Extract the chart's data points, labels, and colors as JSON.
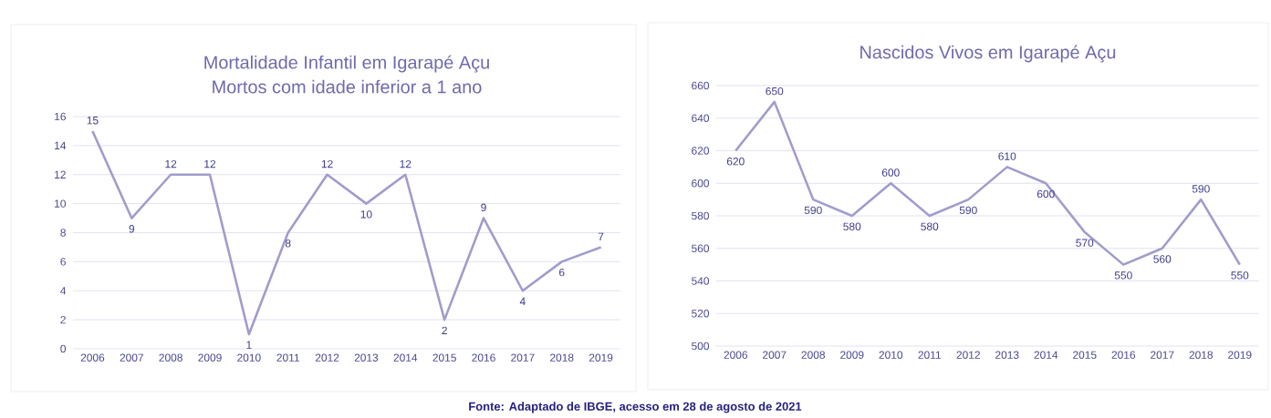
{
  "chart_data": [
    {
      "type": "line",
      "title": "Mortalidade Infantil em Igarapé Açu",
      "subtitle": "Mortos com idade inferior a 1 ano",
      "categories": [
        "2006",
        "2007",
        "2008",
        "2009",
        "2010",
        "2011",
        "2012",
        "2013",
        "2014",
        "2015",
        "2016",
        "2017",
        "2018",
        "2019"
      ],
      "values": [
        15,
        9,
        12,
        12,
        1,
        8,
        12,
        10,
        12,
        2,
        9,
        4,
        6,
        7
      ],
      "color": "#a09ccc",
      "ylim": [
        0,
        16
      ],
      "yticks": [
        0,
        2,
        4,
        6,
        8,
        10,
        12,
        14,
        16
      ],
      "grid": "y",
      "data_labels": true
    },
    {
      "type": "line",
      "title": "Nascidos Vivos em Igarapé Açu",
      "categories": [
        "2006",
        "2007",
        "2008",
        "2009",
        "2010",
        "2011",
        "2012",
        "2013",
        "2014",
        "2015",
        "2016",
        "2017",
        "2018",
        "2019"
      ],
      "values": [
        620,
        650,
        590,
        580,
        600,
        580,
        590,
        610,
        600,
        570,
        550,
        560,
        590,
        550
      ],
      "color": "#a09ccc",
      "ylim": [
        500,
        660
      ],
      "yticks": [
        500,
        520,
        540,
        560,
        580,
        600,
        620,
        640,
        660
      ],
      "grid": "y",
      "data_labels": true,
      "annotations": [
        "Fonte: Adaptado de IBGE, acesso em 28 de agosto de 2021"
      ]
    }
  ]
}
